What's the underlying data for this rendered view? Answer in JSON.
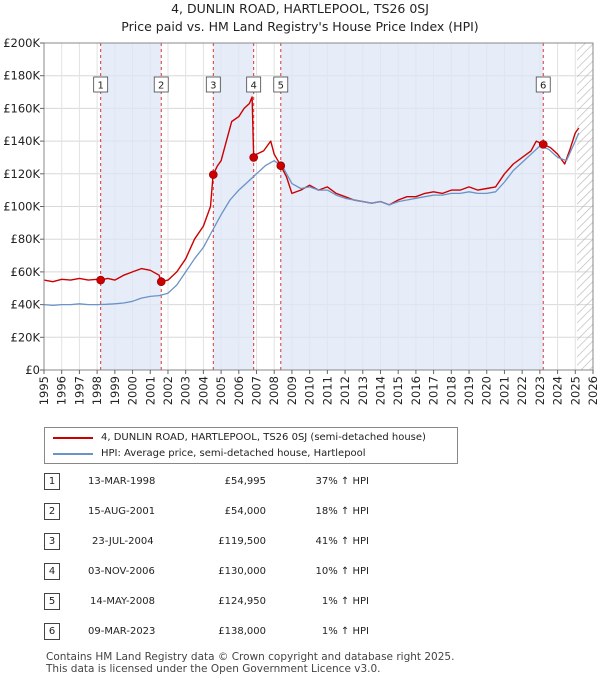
{
  "chart_data": {
    "type": "line",
    "title": "4, DUNLIN ROAD, HARTLEPOOL, TS26 0SJ",
    "subtitle": "Price paid vs. HM Land Registry's House Price Index (HPI)",
    "xlabel": "",
    "ylabel": "",
    "xlim": [
      1995,
      2026
    ],
    "ylim": [
      0,
      200000
    ],
    "y_ticks": [
      0,
      20000,
      40000,
      60000,
      80000,
      100000,
      120000,
      140000,
      160000,
      180000,
      200000
    ],
    "y_tick_labels": [
      "£0",
      "£20K",
      "£40K",
      "£60K",
      "£80K",
      "£100K",
      "£120K",
      "£140K",
      "£160K",
      "£180K",
      "£200K"
    ],
    "x_ticks": [
      1995,
      1996,
      1997,
      1998,
      1999,
      2000,
      2001,
      2002,
      2003,
      2004,
      2005,
      2006,
      2007,
      2008,
      2009,
      2010,
      2011,
      2012,
      2013,
      2014,
      2015,
      2016,
      2017,
      2018,
      2019,
      2020,
      2021,
      2022,
      2023,
      2024,
      2025,
      2026
    ],
    "x_tick_labels": [
      "1995",
      "1996",
      "1997",
      "1998",
      "1999",
      "2000",
      "2001",
      "2002",
      "2003",
      "2004",
      "2005",
      "2006",
      "2007",
      "2008",
      "2009",
      "2010",
      "2011",
      "2012",
      "2013",
      "2014",
      "2015",
      "2016",
      "2017",
      "2018",
      "2019",
      "2020",
      "2021",
      "2022",
      "2023",
      "2024",
      "2025",
      "2026"
    ],
    "grid": true,
    "forecast_start": 2025.1,
    "series": [
      {
        "name": "4, DUNLIN ROAD, HARTLEPOOL, TS26 0SJ (semi-detached house)",
        "color": "#cc0000",
        "points": [
          [
            1995.0,
            55000
          ],
          [
            1995.5,
            54000
          ],
          [
            1996.0,
            55500
          ],
          [
            1996.5,
            55000
          ],
          [
            1997.0,
            56000
          ],
          [
            1997.5,
            55000
          ],
          [
            1998.0,
            55500
          ],
          [
            1998.2,
            54995
          ],
          [
            1998.6,
            56000
          ],
          [
            1999.0,
            55000
          ],
          [
            1999.5,
            58000
          ],
          [
            2000.0,
            60000
          ],
          [
            2000.5,
            62000
          ],
          [
            2001.0,
            61000
          ],
          [
            2001.5,
            58000
          ],
          [
            2001.6,
            54000
          ],
          [
            2002.0,
            55000
          ],
          [
            2002.5,
            60000
          ],
          [
            2003.0,
            68000
          ],
          [
            2003.5,
            80000
          ],
          [
            2004.0,
            88000
          ],
          [
            2004.4,
            100000
          ],
          [
            2004.55,
            119500
          ],
          [
            2004.8,
            125000
          ],
          [
            2005.0,
            128000
          ],
          [
            2005.3,
            140000
          ],
          [
            2005.6,
            152000
          ],
          [
            2006.0,
            155000
          ],
          [
            2006.3,
            160000
          ],
          [
            2006.6,
            163000
          ],
          [
            2006.75,
            167000
          ],
          [
            2006.84,
            130000
          ],
          [
            2007.0,
            132000
          ],
          [
            2007.4,
            134000
          ],
          [
            2007.8,
            140000
          ],
          [
            2008.0,
            132000
          ],
          [
            2008.37,
            124950
          ],
          [
            2008.7,
            118000
          ],
          [
            2009.0,
            108000
          ],
          [
            2009.5,
            110000
          ],
          [
            2010.0,
            113000
          ],
          [
            2010.5,
            110000
          ],
          [
            2011.0,
            112000
          ],
          [
            2011.5,
            108000
          ],
          [
            2012.0,
            106000
          ],
          [
            2012.5,
            104000
          ],
          [
            2013.0,
            103000
          ],
          [
            2013.5,
            102000
          ],
          [
            2014.0,
            103000
          ],
          [
            2014.5,
            101000
          ],
          [
            2015.0,
            104000
          ],
          [
            2015.5,
            106000
          ],
          [
            2016.0,
            106000
          ],
          [
            2016.5,
            108000
          ],
          [
            2017.0,
            109000
          ],
          [
            2017.5,
            108000
          ],
          [
            2018.0,
            110000
          ],
          [
            2018.5,
            110000
          ],
          [
            2019.0,
            112000
          ],
          [
            2019.5,
            110000
          ],
          [
            2020.0,
            111000
          ],
          [
            2020.5,
            112000
          ],
          [
            2021.0,
            120000
          ],
          [
            2021.5,
            126000
          ],
          [
            2022.0,
            130000
          ],
          [
            2022.5,
            134000
          ],
          [
            2022.8,
            140000
          ],
          [
            2023.19,
            138000
          ],
          [
            2023.6,
            136000
          ],
          [
            2024.0,
            132000
          ],
          [
            2024.4,
            126000
          ],
          [
            2024.7,
            135000
          ],
          [
            2025.0,
            145000
          ],
          [
            2025.2,
            148000
          ]
        ]
      },
      {
        "name": "HPI: Average price, semi-detached house, Hartlepool",
        "color": "#6a93c7",
        "points": [
          [
            1995.0,
            40000
          ],
          [
            1995.5,
            39500
          ],
          [
            1996.0,
            40000
          ],
          [
            1996.5,
            40000
          ],
          [
            1997.0,
            40500
          ],
          [
            1997.5,
            40000
          ],
          [
            1998.0,
            40000
          ],
          [
            1998.5,
            40200
          ],
          [
            1999.0,
            40500
          ],
          [
            1999.5,
            41000
          ],
          [
            2000.0,
            42000
          ],
          [
            2000.5,
            44000
          ],
          [
            2001.0,
            45000
          ],
          [
            2001.5,
            45500
          ],
          [
            2002.0,
            47000
          ],
          [
            2002.5,
            52000
          ],
          [
            2003.0,
            60000
          ],
          [
            2003.5,
            68000
          ],
          [
            2004.0,
            75000
          ],
          [
            2004.5,
            85000
          ],
          [
            2005.0,
            95000
          ],
          [
            2005.5,
            104000
          ],
          [
            2006.0,
            110000
          ],
          [
            2006.5,
            115000
          ],
          [
            2007.0,
            120000
          ],
          [
            2007.5,
            125000
          ],
          [
            2008.0,
            128000
          ],
          [
            2008.5,
            124000
          ],
          [
            2009.0,
            114000
          ],
          [
            2009.5,
            111000
          ],
          [
            2010.0,
            112000
          ],
          [
            2010.5,
            110000
          ],
          [
            2011.0,
            110000
          ],
          [
            2011.5,
            107000
          ],
          [
            2012.0,
            105000
          ],
          [
            2012.5,
            104000
          ],
          [
            2013.0,
            103000
          ],
          [
            2013.5,
            102000
          ],
          [
            2014.0,
            103000
          ],
          [
            2014.5,
            101000
          ],
          [
            2015.0,
            103000
          ],
          [
            2015.5,
            104000
          ],
          [
            2016.0,
            105000
          ],
          [
            2016.5,
            106000
          ],
          [
            2017.0,
            107000
          ],
          [
            2017.5,
            107000
          ],
          [
            2018.0,
            108000
          ],
          [
            2018.5,
            108000
          ],
          [
            2019.0,
            109000
          ],
          [
            2019.5,
            108000
          ],
          [
            2020.0,
            108000
          ],
          [
            2020.5,
            109000
          ],
          [
            2021.0,
            115000
          ],
          [
            2021.5,
            122000
          ],
          [
            2022.0,
            127000
          ],
          [
            2022.5,
            132000
          ],
          [
            2023.0,
            137000
          ],
          [
            2023.5,
            135000
          ],
          [
            2024.0,
            130000
          ],
          [
            2024.5,
            128000
          ],
          [
            2025.0,
            140000
          ],
          [
            2025.2,
            145000
          ]
        ]
      }
    ],
    "sale_markers": [
      {
        "label": "1",
        "year": 1998.2,
        "price": 54995
      },
      {
        "label": "2",
        "year": 2001.62,
        "price": 54000
      },
      {
        "label": "3",
        "year": 2004.56,
        "price": 119500
      },
      {
        "label": "4",
        "year": 2006.84,
        "price": 130000
      },
      {
        "label": "5",
        "year": 2008.37,
        "price": 124950
      },
      {
        "label": "6",
        "year": 2023.19,
        "price": 138000
      }
    ]
  },
  "legend": {
    "property_label": "4, DUNLIN ROAD, HARTLEPOOL, TS26 0SJ (semi-detached house)",
    "hpi_label": "HPI: Average price, semi-detached house, Hartlepool"
  },
  "sales": [
    {
      "num": "1",
      "date": "13-MAR-1998",
      "price": "£54,995",
      "hpi": "37% ↑ HPI"
    },
    {
      "num": "2",
      "date": "15-AUG-2001",
      "price": "£54,000",
      "hpi": "18% ↑ HPI"
    },
    {
      "num": "3",
      "date": "23-JUL-2004",
      "price": "£119,500",
      "hpi": "41% ↑ HPI"
    },
    {
      "num": "4",
      "date": "03-NOV-2006",
      "price": "£130,000",
      "hpi": "10% ↑ HPI"
    },
    {
      "num": "5",
      "date": "14-MAY-2008",
      "price": "£124,950",
      "hpi": "1% ↑ HPI"
    },
    {
      "num": "6",
      "date": "09-MAR-2023",
      "price": "£138,000",
      "hpi": "1% ↑ HPI"
    }
  ],
  "footer": {
    "line1": "Contains HM Land Registry data © Crown copyright and database right 2025.",
    "line2": "This data is licensed under the Open Government Licence v3.0."
  }
}
